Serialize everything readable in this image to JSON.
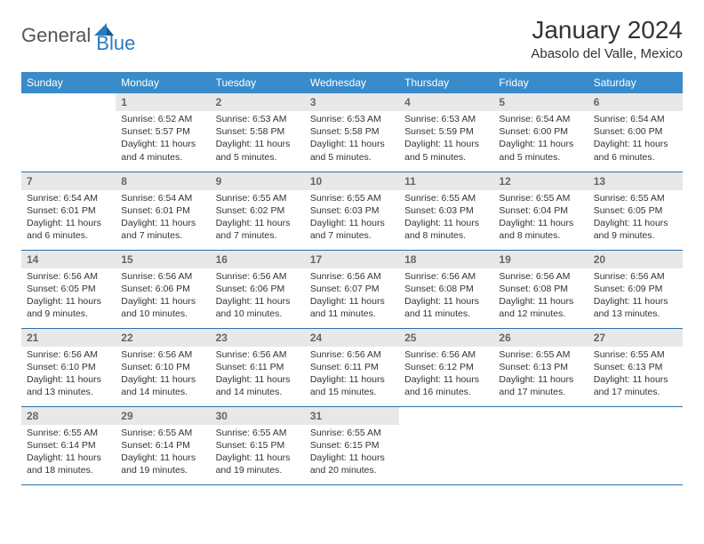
{
  "logo": {
    "general": "General",
    "blue": "Blue"
  },
  "title": "January 2024",
  "location": "Abasolo del Valle, Mexico",
  "colors": {
    "header_bg": "#3a8bc9",
    "header_text": "#ffffff",
    "day_number_bg": "#e8e8e8",
    "day_number_text": "#666666",
    "row_border": "#2b6fa8",
    "logo_blue": "#2b7bbf"
  },
  "day_names": [
    "Sunday",
    "Monday",
    "Tuesday",
    "Wednesday",
    "Thursday",
    "Friday",
    "Saturday"
  ],
  "weeks": [
    [
      null,
      {
        "n": "1",
        "sr": "Sunrise: 6:52 AM",
        "ss": "Sunset: 5:57 PM",
        "d1": "Daylight: 11 hours",
        "d2": "and 4 minutes."
      },
      {
        "n": "2",
        "sr": "Sunrise: 6:53 AM",
        "ss": "Sunset: 5:58 PM",
        "d1": "Daylight: 11 hours",
        "d2": "and 5 minutes."
      },
      {
        "n": "3",
        "sr": "Sunrise: 6:53 AM",
        "ss": "Sunset: 5:58 PM",
        "d1": "Daylight: 11 hours",
        "d2": "and 5 minutes."
      },
      {
        "n": "4",
        "sr": "Sunrise: 6:53 AM",
        "ss": "Sunset: 5:59 PM",
        "d1": "Daylight: 11 hours",
        "d2": "and 5 minutes."
      },
      {
        "n": "5",
        "sr": "Sunrise: 6:54 AM",
        "ss": "Sunset: 6:00 PM",
        "d1": "Daylight: 11 hours",
        "d2": "and 5 minutes."
      },
      {
        "n": "6",
        "sr": "Sunrise: 6:54 AM",
        "ss": "Sunset: 6:00 PM",
        "d1": "Daylight: 11 hours",
        "d2": "and 6 minutes."
      }
    ],
    [
      {
        "n": "7",
        "sr": "Sunrise: 6:54 AM",
        "ss": "Sunset: 6:01 PM",
        "d1": "Daylight: 11 hours",
        "d2": "and 6 minutes."
      },
      {
        "n": "8",
        "sr": "Sunrise: 6:54 AM",
        "ss": "Sunset: 6:01 PM",
        "d1": "Daylight: 11 hours",
        "d2": "and 7 minutes."
      },
      {
        "n": "9",
        "sr": "Sunrise: 6:55 AM",
        "ss": "Sunset: 6:02 PM",
        "d1": "Daylight: 11 hours",
        "d2": "and 7 minutes."
      },
      {
        "n": "10",
        "sr": "Sunrise: 6:55 AM",
        "ss": "Sunset: 6:03 PM",
        "d1": "Daylight: 11 hours",
        "d2": "and 7 minutes."
      },
      {
        "n": "11",
        "sr": "Sunrise: 6:55 AM",
        "ss": "Sunset: 6:03 PM",
        "d1": "Daylight: 11 hours",
        "d2": "and 8 minutes."
      },
      {
        "n": "12",
        "sr": "Sunrise: 6:55 AM",
        "ss": "Sunset: 6:04 PM",
        "d1": "Daylight: 11 hours",
        "d2": "and 8 minutes."
      },
      {
        "n": "13",
        "sr": "Sunrise: 6:55 AM",
        "ss": "Sunset: 6:05 PM",
        "d1": "Daylight: 11 hours",
        "d2": "and 9 minutes."
      }
    ],
    [
      {
        "n": "14",
        "sr": "Sunrise: 6:56 AM",
        "ss": "Sunset: 6:05 PM",
        "d1": "Daylight: 11 hours",
        "d2": "and 9 minutes."
      },
      {
        "n": "15",
        "sr": "Sunrise: 6:56 AM",
        "ss": "Sunset: 6:06 PM",
        "d1": "Daylight: 11 hours",
        "d2": "and 10 minutes."
      },
      {
        "n": "16",
        "sr": "Sunrise: 6:56 AM",
        "ss": "Sunset: 6:06 PM",
        "d1": "Daylight: 11 hours",
        "d2": "and 10 minutes."
      },
      {
        "n": "17",
        "sr": "Sunrise: 6:56 AM",
        "ss": "Sunset: 6:07 PM",
        "d1": "Daylight: 11 hours",
        "d2": "and 11 minutes."
      },
      {
        "n": "18",
        "sr": "Sunrise: 6:56 AM",
        "ss": "Sunset: 6:08 PM",
        "d1": "Daylight: 11 hours",
        "d2": "and 11 minutes."
      },
      {
        "n": "19",
        "sr": "Sunrise: 6:56 AM",
        "ss": "Sunset: 6:08 PM",
        "d1": "Daylight: 11 hours",
        "d2": "and 12 minutes."
      },
      {
        "n": "20",
        "sr": "Sunrise: 6:56 AM",
        "ss": "Sunset: 6:09 PM",
        "d1": "Daylight: 11 hours",
        "d2": "and 13 minutes."
      }
    ],
    [
      {
        "n": "21",
        "sr": "Sunrise: 6:56 AM",
        "ss": "Sunset: 6:10 PM",
        "d1": "Daylight: 11 hours",
        "d2": "and 13 minutes."
      },
      {
        "n": "22",
        "sr": "Sunrise: 6:56 AM",
        "ss": "Sunset: 6:10 PM",
        "d1": "Daylight: 11 hours",
        "d2": "and 14 minutes."
      },
      {
        "n": "23",
        "sr": "Sunrise: 6:56 AM",
        "ss": "Sunset: 6:11 PM",
        "d1": "Daylight: 11 hours",
        "d2": "and 14 minutes."
      },
      {
        "n": "24",
        "sr": "Sunrise: 6:56 AM",
        "ss": "Sunset: 6:11 PM",
        "d1": "Daylight: 11 hours",
        "d2": "and 15 minutes."
      },
      {
        "n": "25",
        "sr": "Sunrise: 6:56 AM",
        "ss": "Sunset: 6:12 PM",
        "d1": "Daylight: 11 hours",
        "d2": "and 16 minutes."
      },
      {
        "n": "26",
        "sr": "Sunrise: 6:55 AM",
        "ss": "Sunset: 6:13 PM",
        "d1": "Daylight: 11 hours",
        "d2": "and 17 minutes."
      },
      {
        "n": "27",
        "sr": "Sunrise: 6:55 AM",
        "ss": "Sunset: 6:13 PM",
        "d1": "Daylight: 11 hours",
        "d2": "and 17 minutes."
      }
    ],
    [
      {
        "n": "28",
        "sr": "Sunrise: 6:55 AM",
        "ss": "Sunset: 6:14 PM",
        "d1": "Daylight: 11 hours",
        "d2": "and 18 minutes."
      },
      {
        "n": "29",
        "sr": "Sunrise: 6:55 AM",
        "ss": "Sunset: 6:14 PM",
        "d1": "Daylight: 11 hours",
        "d2": "and 19 minutes."
      },
      {
        "n": "30",
        "sr": "Sunrise: 6:55 AM",
        "ss": "Sunset: 6:15 PM",
        "d1": "Daylight: 11 hours",
        "d2": "and 19 minutes."
      },
      {
        "n": "31",
        "sr": "Sunrise: 6:55 AM",
        "ss": "Sunset: 6:15 PM",
        "d1": "Daylight: 11 hours",
        "d2": "and 20 minutes."
      },
      null,
      null,
      null
    ]
  ]
}
